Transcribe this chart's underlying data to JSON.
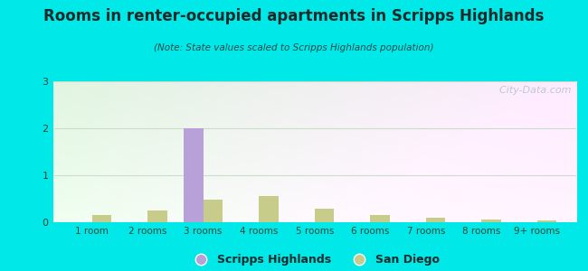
{
  "title": "Rooms in renter-occupied apartments in Scripps Highlands",
  "subtitle": "(Note: State values scaled to Scripps Highlands population)",
  "categories": [
    "1 room",
    "2 rooms",
    "3 rooms",
    "4 rooms",
    "5 rooms",
    "6 rooms",
    "7 rooms",
    "8 rooms",
    "9+ rooms"
  ],
  "scripps_highlands": [
    0,
    0,
    2,
    0,
    0,
    0,
    0,
    0,
    0
  ],
  "san_diego": [
    0.15,
    0.25,
    0.48,
    0.55,
    0.28,
    0.16,
    0.1,
    0.05,
    0.04
  ],
  "scripps_color": "#b8a0d8",
  "san_diego_color": "#c8cc8a",
  "background_outer": "#00e8e8",
  "ylim": [
    0,
    3
  ],
  "yticks": [
    0,
    1,
    2,
    3
  ],
  "bar_width": 0.35,
  "watermark": "  City-Data.com",
  "legend_scripps": "Scripps Highlands",
  "legend_sandiego": "San Diego",
  "title_color": "#1a2a2a",
  "subtitle_color": "#2a4a4a",
  "tick_color": "#334433",
  "grid_color": "#ccddcc"
}
